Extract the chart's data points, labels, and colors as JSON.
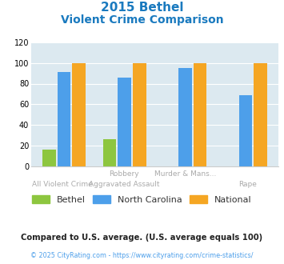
{
  "title_line1": "2015 Bethel",
  "title_line2": "Violent Crime Comparison",
  "cat_labels_top": [
    "",
    "Robbery",
    "Murder & Mans...",
    ""
  ],
  "cat_labels_bottom": [
    "All Violent Crime",
    "Aggravated Assault",
    "",
    "Rape"
  ],
  "bethel": [
    16,
    26,
    0,
    0
  ],
  "north_carolina": [
    91,
    86,
    95,
    69
  ],
  "national": [
    100,
    100,
    100,
    100
  ],
  "bethel_color": "#8dc63f",
  "nc_color": "#4d9fea",
  "national_color": "#f5a623",
  "ylim": [
    0,
    120
  ],
  "yticks": [
    0,
    20,
    40,
    60,
    80,
    100,
    120
  ],
  "bg_color": "#dce9f0",
  "title_color": "#1a7abf",
  "footnote1": "Compared to U.S. average. (U.S. average equals 100)",
  "footnote2": "© 2025 CityRating.com - https://www.cityrating.com/crime-statistics/",
  "footnote2_color": "#4d9fea",
  "legend_labels": [
    "Bethel",
    "North Carolina",
    "National"
  ],
  "xlabel_color": "#aaaaaa"
}
